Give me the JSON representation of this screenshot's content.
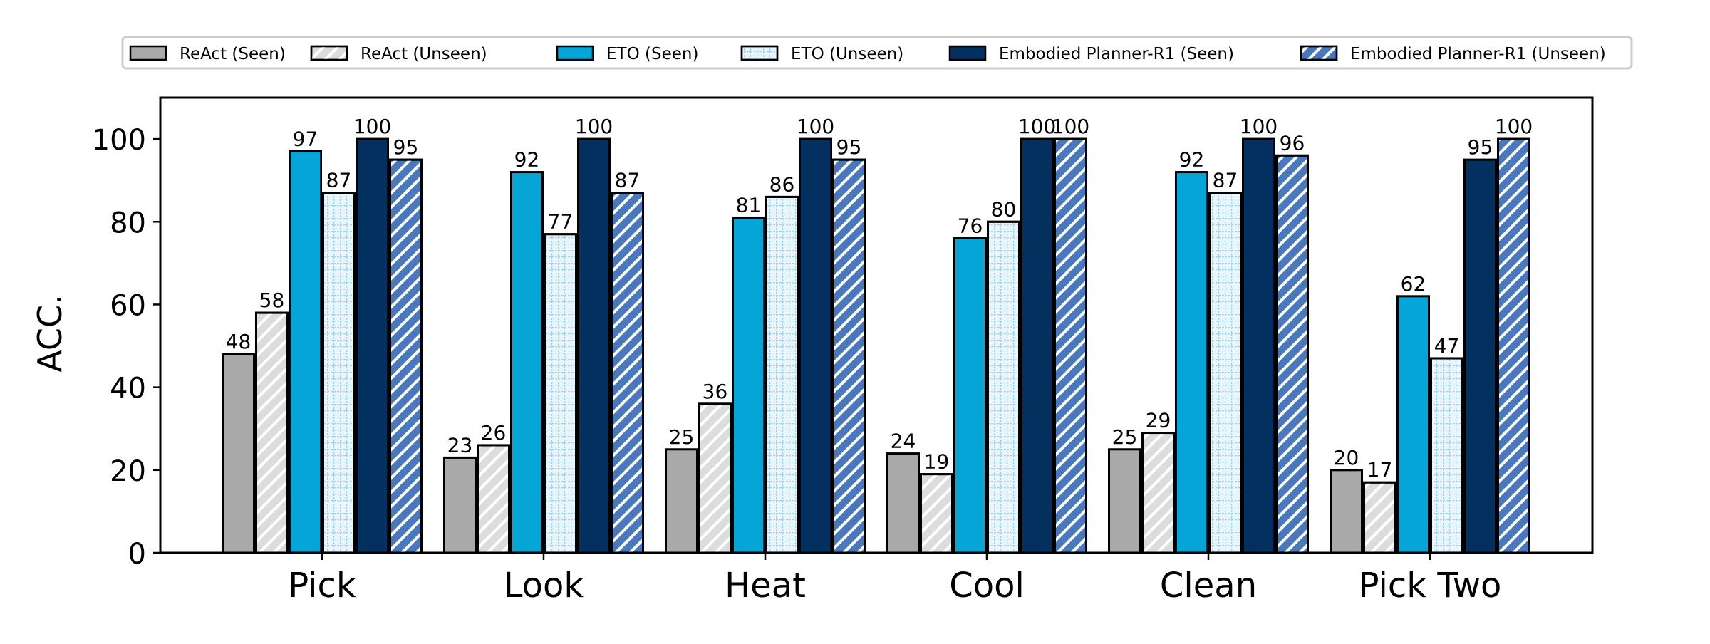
{
  "chart_data": {
    "type": "bar",
    "ylabel": "ACC.",
    "xlabel": "",
    "title": "",
    "ylim": [
      0,
      110
    ],
    "yticks": [
      0,
      20,
      40,
      60,
      80,
      100
    ],
    "grid": false,
    "legend_position": "top",
    "categories": [
      "Pick",
      "Look",
      "Heat",
      "Cool",
      "Clean",
      "Pick Two"
    ],
    "series": [
      {
        "name": "ReAct (Seen)",
        "values": [
          48,
          23,
          25,
          24,
          25,
          20
        ],
        "color": "#a9a9a9",
        "pattern": "none"
      },
      {
        "name": "ReAct (Unseen)",
        "values": [
          58,
          26,
          36,
          19,
          29,
          17
        ],
        "color": "#dcdcdc",
        "pattern": "diagonal"
      },
      {
        "name": "ETO (Seen)",
        "values": [
          97,
          92,
          81,
          76,
          92,
          62
        ],
        "color": "#05a5d8",
        "pattern": "none"
      },
      {
        "name": "ETO (Unseen)",
        "values": [
          87,
          77,
          86,
          80,
          87,
          47
        ],
        "color": "#e8f6fc",
        "pattern": "grid"
      },
      {
        "name": "Embodied Planner-R1 (Seen)",
        "values": [
          100,
          100,
          100,
          100,
          100,
          95
        ],
        "color": "#043060",
        "pattern": "none"
      },
      {
        "name": "Embodied Planner-R1 (Unseen)",
        "values": [
          95,
          87,
          95,
          100,
          96,
          100
        ],
        "color": "#4a78bd",
        "pattern": "diagonal"
      }
    ]
  }
}
